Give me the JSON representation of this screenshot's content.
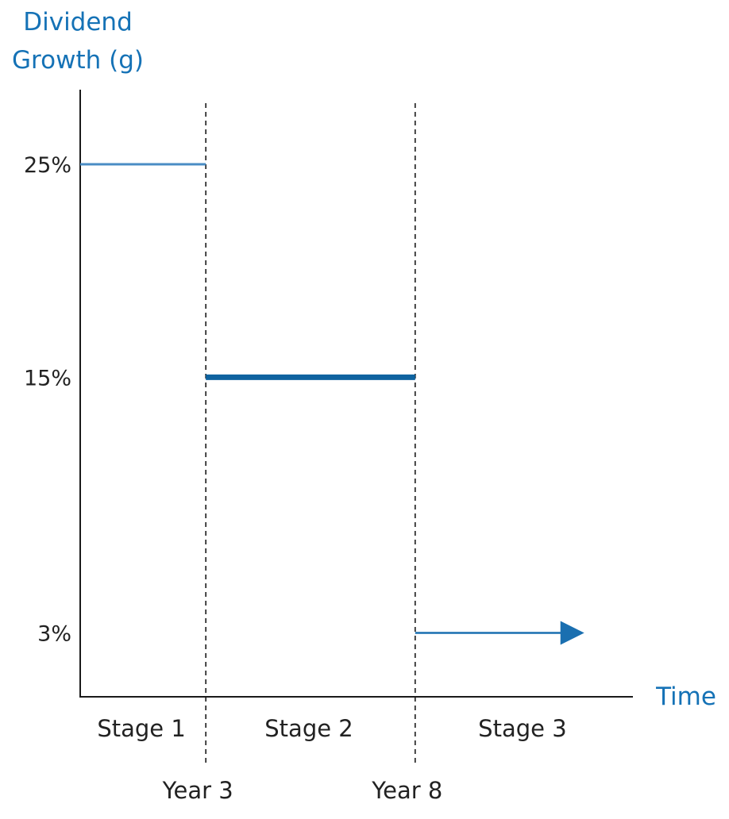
{
  "chart_data": {
    "type": "line",
    "ylabel": [
      "Dividend",
      "Growth (g)"
    ],
    "xlabel": "Time",
    "yticks": [
      {
        "value": 25,
        "label": "25%"
      },
      {
        "value": 15,
        "label": "15%"
      },
      {
        "value": 3,
        "label": "3%"
      }
    ],
    "x_markers": [
      {
        "x": 3,
        "label": "Year 3"
      },
      {
        "x": 8,
        "label": "Year 8"
      }
    ],
    "stages": [
      {
        "label": "Stage 1",
        "x_start": 0,
        "x_end": 3,
        "growth": 25,
        "thickness": "thin"
      },
      {
        "label": "Stage 2",
        "x_start": 3,
        "x_end": 8,
        "growth": 15,
        "thickness": "thick"
      },
      {
        "label": "Stage 3",
        "x_start": 8,
        "x_end": 12,
        "growth": 3,
        "thickness": "thin",
        "arrow": true
      }
    ],
    "ylim": [
      0,
      28.5
    ],
    "xlim": [
      0,
      13.2
    ],
    "grid": false,
    "colors": {
      "axis_label": "#1572b6",
      "stage1_line": "#4a8cc4",
      "stage2_line": "#0f63a0",
      "stage3_line": "#1a6fb0",
      "axis": "#1a1a1a",
      "divider": "#1a1a1a"
    }
  }
}
